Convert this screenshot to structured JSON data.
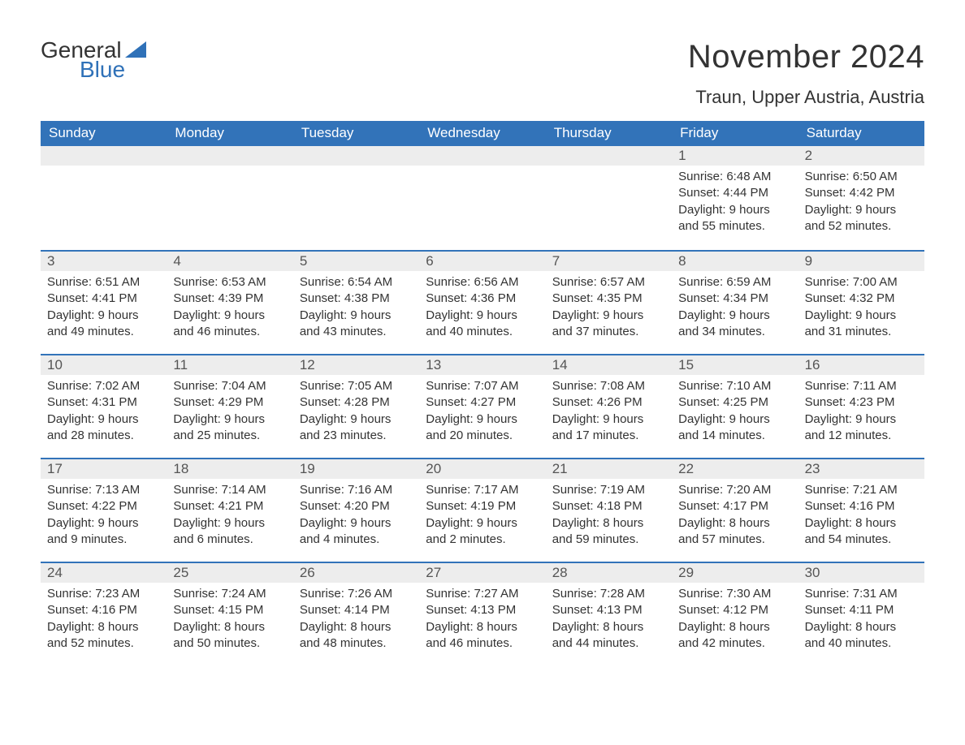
{
  "brand": {
    "part1": "General",
    "part2": "Blue",
    "logo_color": "#2f71b8"
  },
  "title": "November 2024",
  "location": "Traun, Upper Austria, Austria",
  "colors": {
    "header_bg": "#3273b9",
    "header_text": "#ffffff",
    "strip_bg": "#ededed",
    "divider": "#3273b9",
    "text": "#333333"
  },
  "fonts": {
    "title_size_pt": 30,
    "location_size_pt": 17,
    "dow_size_pt": 13,
    "body_size_pt": 11
  },
  "days_of_week": [
    "Sunday",
    "Monday",
    "Tuesday",
    "Wednesday",
    "Thursday",
    "Friday",
    "Saturday"
  ],
  "weeks": [
    [
      null,
      null,
      null,
      null,
      null,
      {
        "n": "1",
        "sunrise": "6:48 AM",
        "sunset": "4:44 PM",
        "dl1": "Daylight: 9 hours",
        "dl2": "and 55 minutes."
      },
      {
        "n": "2",
        "sunrise": "6:50 AM",
        "sunset": "4:42 PM",
        "dl1": "Daylight: 9 hours",
        "dl2": "and 52 minutes."
      }
    ],
    [
      {
        "n": "3",
        "sunrise": "6:51 AM",
        "sunset": "4:41 PM",
        "dl1": "Daylight: 9 hours",
        "dl2": "and 49 minutes."
      },
      {
        "n": "4",
        "sunrise": "6:53 AM",
        "sunset": "4:39 PM",
        "dl1": "Daylight: 9 hours",
        "dl2": "and 46 minutes."
      },
      {
        "n": "5",
        "sunrise": "6:54 AM",
        "sunset": "4:38 PM",
        "dl1": "Daylight: 9 hours",
        "dl2": "and 43 minutes."
      },
      {
        "n": "6",
        "sunrise": "6:56 AM",
        "sunset": "4:36 PM",
        "dl1": "Daylight: 9 hours",
        "dl2": "and 40 minutes."
      },
      {
        "n": "7",
        "sunrise": "6:57 AM",
        "sunset": "4:35 PM",
        "dl1": "Daylight: 9 hours",
        "dl2": "and 37 minutes."
      },
      {
        "n": "8",
        "sunrise": "6:59 AM",
        "sunset": "4:34 PM",
        "dl1": "Daylight: 9 hours",
        "dl2": "and 34 minutes."
      },
      {
        "n": "9",
        "sunrise": "7:00 AM",
        "sunset": "4:32 PM",
        "dl1": "Daylight: 9 hours",
        "dl2": "and 31 minutes."
      }
    ],
    [
      {
        "n": "10",
        "sunrise": "7:02 AM",
        "sunset": "4:31 PM",
        "dl1": "Daylight: 9 hours",
        "dl2": "and 28 minutes."
      },
      {
        "n": "11",
        "sunrise": "7:04 AM",
        "sunset": "4:29 PM",
        "dl1": "Daylight: 9 hours",
        "dl2": "and 25 minutes."
      },
      {
        "n": "12",
        "sunrise": "7:05 AM",
        "sunset": "4:28 PM",
        "dl1": "Daylight: 9 hours",
        "dl2": "and 23 minutes."
      },
      {
        "n": "13",
        "sunrise": "7:07 AM",
        "sunset": "4:27 PM",
        "dl1": "Daylight: 9 hours",
        "dl2": "and 20 minutes."
      },
      {
        "n": "14",
        "sunrise": "7:08 AM",
        "sunset": "4:26 PM",
        "dl1": "Daylight: 9 hours",
        "dl2": "and 17 minutes."
      },
      {
        "n": "15",
        "sunrise": "7:10 AM",
        "sunset": "4:25 PM",
        "dl1": "Daylight: 9 hours",
        "dl2": "and 14 minutes."
      },
      {
        "n": "16",
        "sunrise": "7:11 AM",
        "sunset": "4:23 PM",
        "dl1": "Daylight: 9 hours",
        "dl2": "and 12 minutes."
      }
    ],
    [
      {
        "n": "17",
        "sunrise": "7:13 AM",
        "sunset": "4:22 PM",
        "dl1": "Daylight: 9 hours",
        "dl2": "and 9 minutes."
      },
      {
        "n": "18",
        "sunrise": "7:14 AM",
        "sunset": "4:21 PM",
        "dl1": "Daylight: 9 hours",
        "dl2": "and 6 minutes."
      },
      {
        "n": "19",
        "sunrise": "7:16 AM",
        "sunset": "4:20 PM",
        "dl1": "Daylight: 9 hours",
        "dl2": "and 4 minutes."
      },
      {
        "n": "20",
        "sunrise": "7:17 AM",
        "sunset": "4:19 PM",
        "dl1": "Daylight: 9 hours",
        "dl2": "and 2 minutes."
      },
      {
        "n": "21",
        "sunrise": "7:19 AM",
        "sunset": "4:18 PM",
        "dl1": "Daylight: 8 hours",
        "dl2": "and 59 minutes."
      },
      {
        "n": "22",
        "sunrise": "7:20 AM",
        "sunset": "4:17 PM",
        "dl1": "Daylight: 8 hours",
        "dl2": "and 57 minutes."
      },
      {
        "n": "23",
        "sunrise": "7:21 AM",
        "sunset": "4:16 PM",
        "dl1": "Daylight: 8 hours",
        "dl2": "and 54 minutes."
      }
    ],
    [
      {
        "n": "24",
        "sunrise": "7:23 AM",
        "sunset": "4:16 PM",
        "dl1": "Daylight: 8 hours",
        "dl2": "and 52 minutes."
      },
      {
        "n": "25",
        "sunrise": "7:24 AM",
        "sunset": "4:15 PM",
        "dl1": "Daylight: 8 hours",
        "dl2": "and 50 minutes."
      },
      {
        "n": "26",
        "sunrise": "7:26 AM",
        "sunset": "4:14 PM",
        "dl1": "Daylight: 8 hours",
        "dl2": "and 48 minutes."
      },
      {
        "n": "27",
        "sunrise": "7:27 AM",
        "sunset": "4:13 PM",
        "dl1": "Daylight: 8 hours",
        "dl2": "and 46 minutes."
      },
      {
        "n": "28",
        "sunrise": "7:28 AM",
        "sunset": "4:13 PM",
        "dl1": "Daylight: 8 hours",
        "dl2": "and 44 minutes."
      },
      {
        "n": "29",
        "sunrise": "7:30 AM",
        "sunset": "4:12 PM",
        "dl1": "Daylight: 8 hours",
        "dl2": "and 42 minutes."
      },
      {
        "n": "30",
        "sunrise": "7:31 AM",
        "sunset": "4:11 PM",
        "dl1": "Daylight: 8 hours",
        "dl2": "and 40 minutes."
      }
    ]
  ],
  "labels": {
    "sunrise_prefix": "Sunrise: ",
    "sunset_prefix": "Sunset: "
  }
}
